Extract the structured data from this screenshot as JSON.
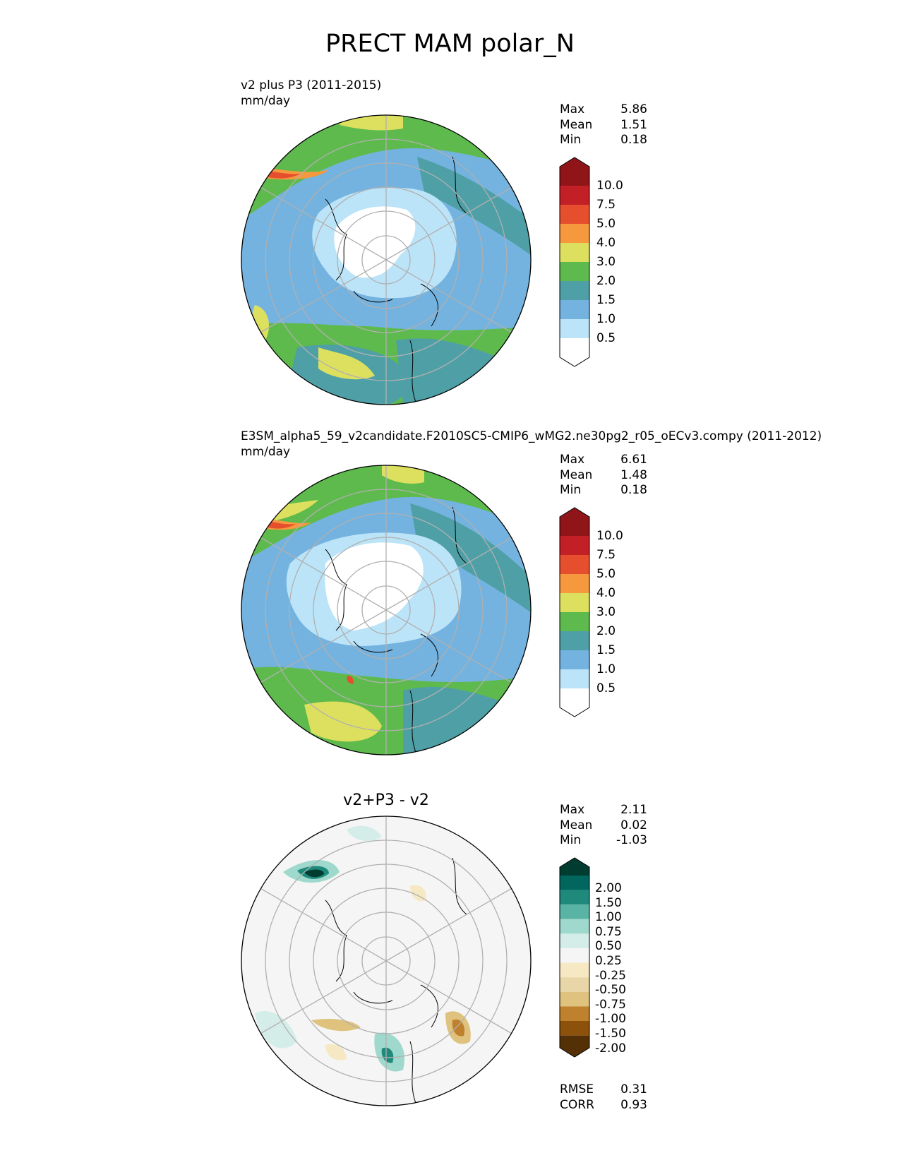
{
  "figure": {
    "title": "PRECT MAM polar_N"
  },
  "colors": {
    "precip": [
      "#ffffff",
      "#bce4f8",
      "#74b3df",
      "#4ea0a6",
      "#5eba4d",
      "#dde05e",
      "#f6983e",
      "#e64f2e",
      "#c21f26",
      "#8f1519"
    ],
    "diff": [
      "#543006",
      "#8c510a",
      "#bf812d",
      "#dfc27d",
      "#e8d6a8",
      "#f6e8c3",
      "#f5f5f5",
      "#d5ede8",
      "#9fd8cc",
      "#5ab4a6",
      "#1f8a7c",
      "#01665e",
      "#003c30"
    ],
    "grid": "#b0b0b0",
    "coast": "#000000"
  },
  "panels": [
    {
      "id": "test",
      "title_line1": "v2 plus P3 (2011-2015)",
      "units": "mm/day",
      "stats": {
        "max_label": "Max",
        "max": "5.86",
        "mean_label": "Mean",
        "mean": "1.51",
        "min_label": "Min",
        "min": "0.18"
      },
      "colorbar": {
        "levels": [
          "10.0",
          "7.5",
          "5.0",
          "4.0",
          "3.0",
          "2.0",
          "1.5",
          "1.0",
          "0.5"
        ]
      }
    },
    {
      "id": "ref",
      "title_line1": "E3SM_alpha5_59_v2candidate.F2010SC5-CMIP6_wMG2.ne30pg2_r05_oECv3.compy (2011-2012)",
      "units": "mm/day",
      "stats": {
        "max_label": "Max",
        "max": "6.61",
        "mean_label": "Mean",
        "mean": "1.48",
        "min_label": "Min",
        "min": "0.18"
      },
      "colorbar": {
        "levels": [
          "10.0",
          "7.5",
          "5.0",
          "4.0",
          "3.0",
          "2.0",
          "1.5",
          "1.0",
          "0.5"
        ]
      }
    },
    {
      "id": "diff",
      "center_title": "v2+P3 - v2",
      "stats": {
        "max_label": "Max",
        "max": "2.11",
        "mean_label": "Mean",
        "mean": "0.02",
        "min_label": "Min",
        "min": "-1.03"
      },
      "colorbar": {
        "levels": [
          "2.00",
          "1.50",
          "1.00",
          "0.75",
          "0.50",
          "0.25",
          "-0.25",
          "-0.50",
          "-0.75",
          "-1.00",
          "-1.50",
          "-2.00"
        ]
      },
      "footer": {
        "rmse_label": "RMSE",
        "rmse": "0.31",
        "corr_label": "CORR",
        "corr": "0.93"
      }
    }
  ]
}
